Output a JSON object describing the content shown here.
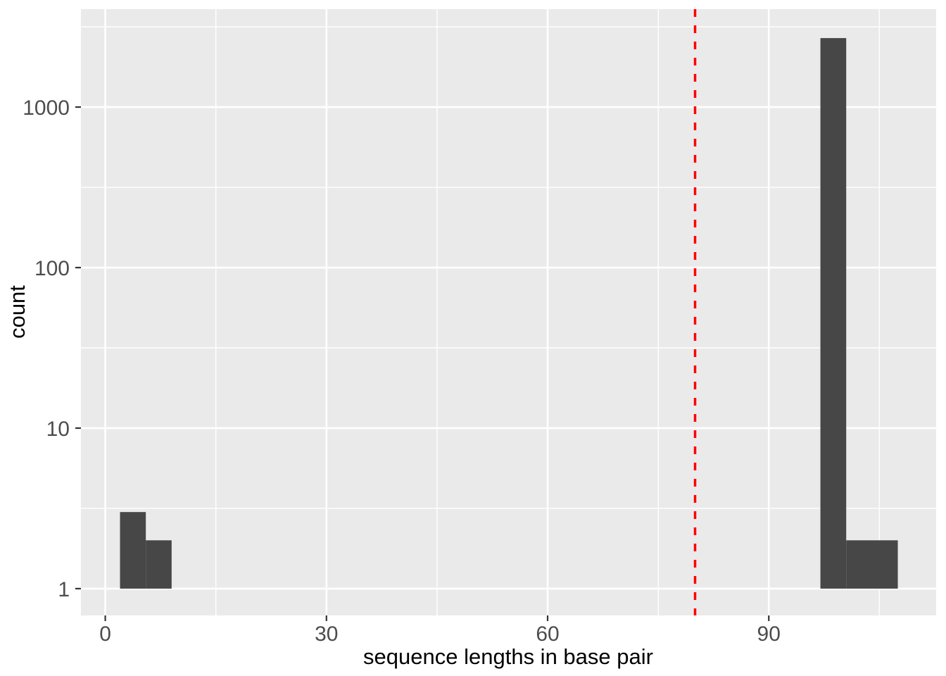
{
  "figure": {
    "background": "#FFFFFF",
    "panel_background": "#EAEAEA",
    "grid_color": "#FFFFFF",
    "bar_color": "#474747",
    "tick_mark_color": "#333333",
    "tick_label_color": "#4D4D4D",
    "axis_title_color": "#000000"
  },
  "chart_data": {
    "type": "bar",
    "subtype": "histogram",
    "title": "",
    "xlabel": "sequence lengths in base pair",
    "ylabel": "count",
    "grid": true,
    "legend_position": "none",
    "y_scale": "log10",
    "xlim": [
      -3.3,
      112.7
    ],
    "ylim_log10": [
      -0.167,
      3.61
    ],
    "x_ticks": [
      0,
      30,
      60,
      90
    ],
    "x_tick_labels": [
      "0",
      "30",
      "60",
      "90"
    ],
    "x_minor_breaks": [
      15,
      45,
      75,
      105
    ],
    "y_ticks": [
      1,
      10,
      100,
      1000
    ],
    "y_tick_labels": [
      "1",
      "10",
      "100",
      "1000"
    ],
    "y_minor_breaks": [
      3.1623,
      31.623,
      316.23,
      3162.3
    ],
    "bars": [
      {
        "x0": 2.0,
        "x1": 5.5,
        "count": 3
      },
      {
        "x0": 5.5,
        "x1": 9.0,
        "count": 2
      },
      {
        "x0": 97.0,
        "x1": 100.5,
        "count": 2690
      },
      {
        "x0": 100.5,
        "x1": 107.5,
        "count": 2
      }
    ],
    "baseline_count": 1,
    "vline": {
      "x": 80,
      "color": "#FF0000",
      "style": "dashed"
    }
  }
}
